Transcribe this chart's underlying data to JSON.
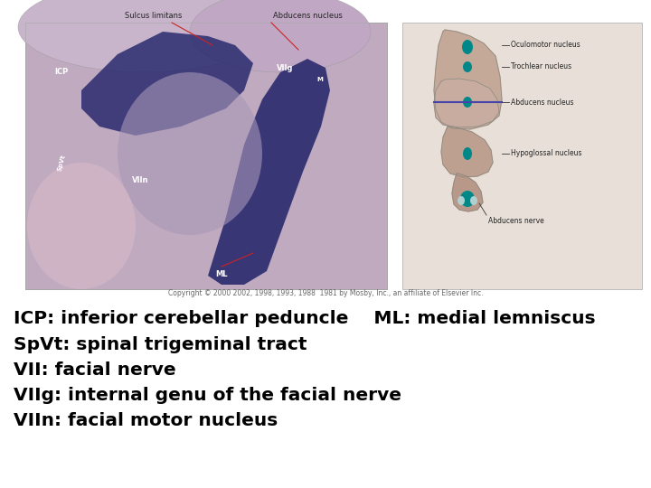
{
  "background_color": "#ffffff",
  "fig_width": 7.2,
  "fig_height": 5.4,
  "dpi": 100,
  "text_lines": [
    "ICP: inferior cerebellar peduncle    ML: medial lemniscus",
    "SpVt: spinal trigeminal tract",
    "VII: facial nerve",
    "VIIg: internal genu of the facial nerve",
    "VIIn: facial motor nucleus"
  ],
  "text_fontsize": 14.5,
  "text_color": "#000000",
  "text_fontweight": "bold",
  "copyright_text": "Copyright © 2000 2002, 1998, 1993, 1988  1981 by Mosby, Inc., an affiliate of Elsevier Inc.",
  "copyright_fontsize": 5.5,
  "copyright_color": "#666666",
  "histo_bg": "#b8a8c8",
  "histo_dark": "#2a2a6e",
  "histo_mid": "#8888bb",
  "histo_light": "#d8c8e8",
  "diagram_bg": "#c8b0a0",
  "teal_color": "#008888"
}
